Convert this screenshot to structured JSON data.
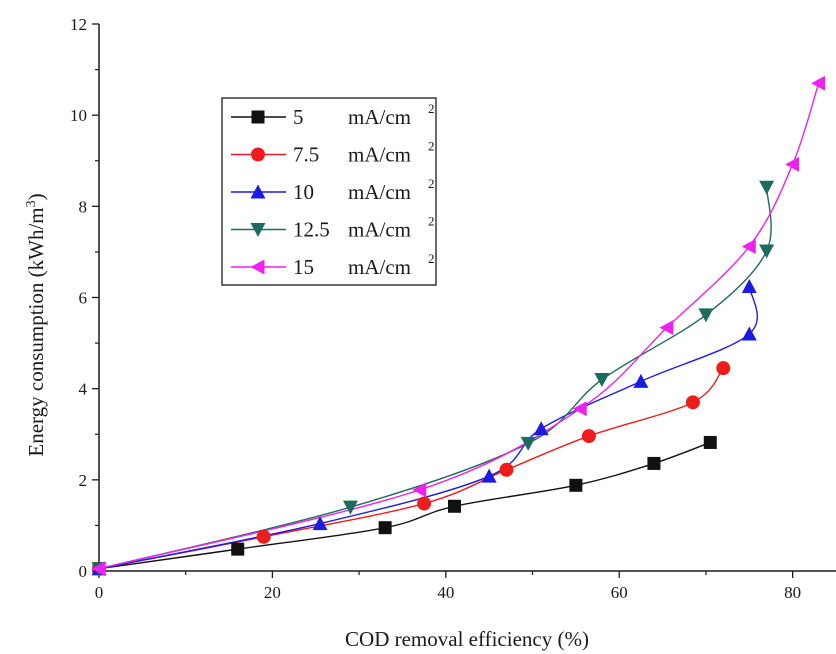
{
  "colors": {
    "axis": "#1a1a1a",
    "s5": "#111111",
    "s7_5": "#ee1c1c",
    "s10": "#1c1ce0",
    "s12_5": "#1d6b5e",
    "s15": "#ee22ee"
  },
  "chart_data": {
    "type": "line",
    "title": "",
    "xlabel": "COD removal efficiency (%)",
    "ylabel": "Energy consumption (kWh/m3)",
    "ylabel_parts": {
      "main": "Energy consumption (kWh/m",
      "sup": "3",
      "close": ")"
    },
    "xlim": [
      0,
      85
    ],
    "ylim": [
      0,
      12
    ],
    "x_ticks": [
      "0",
      "20",
      "40",
      "60",
      "80"
    ],
    "y_ticks": [
      "0",
      "2",
      "4",
      "6",
      "8",
      "10",
      "12"
    ],
    "x_tick_values": [
      0,
      20,
      40,
      60,
      80
    ],
    "y_tick_values": [
      0,
      2,
      4,
      6,
      8,
      10,
      12
    ],
    "legend_position": "upper-left",
    "series": [
      {
        "name": "5 mA/cm2",
        "legend_value": "5",
        "legend_unit": "mA/cm",
        "legend_sup": "2",
        "color_key": "s5",
        "marker": "square",
        "points": [
          [
            0,
            0.05
          ],
          [
            16,
            0.48
          ],
          [
            33,
            0.95
          ],
          [
            41,
            1.42
          ],
          [
            55,
            1.88
          ],
          [
            64,
            2.36
          ],
          [
            70.5,
            2.82
          ]
        ]
      },
      {
        "name": "7.5 mA/cm2",
        "legend_value": "7.5",
        "legend_unit": "mA/cm",
        "legend_sup": "2",
        "color_key": "s7_5",
        "marker": "circle",
        "points": [
          [
            0,
            0.05
          ],
          [
            19,
            0.75
          ],
          [
            37.5,
            1.48
          ],
          [
            47,
            2.22
          ],
          [
            56.5,
            2.96
          ],
          [
            68.5,
            3.7
          ],
          [
            72,
            4.45
          ]
        ]
      },
      {
        "name": "10 mA/cm2",
        "legend_value": "10",
        "legend_unit": "mA/cm",
        "legend_sup": "2",
        "color_key": "s10",
        "marker": "triangle-up",
        "points": [
          [
            0,
            0.05
          ],
          [
            25.5,
            1.04
          ],
          [
            45,
            2.08
          ],
          [
            51,
            3.12
          ],
          [
            62.5,
            4.16
          ],
          [
            75,
            5.2
          ],
          [
            75,
            6.24
          ]
        ]
      },
      {
        "name": "12.5 mA/cm2",
        "legend_value": "12.5",
        "legend_unit": "mA/cm",
        "legend_sup": "2",
        "color_key": "s12_5",
        "marker": "triangle-down",
        "points": [
          [
            0,
            0.05
          ],
          [
            29,
            1.4
          ],
          [
            49.5,
            2.8
          ],
          [
            58,
            4.2
          ],
          [
            70,
            5.62
          ],
          [
            77,
            7.02
          ],
          [
            77,
            8.42
          ]
        ]
      },
      {
        "name": "15 mA/cm2",
        "legend_value": "15",
        "legend_unit": "mA/cm",
        "legend_sup": "2",
        "color_key": "s15",
        "marker": "triangle-left",
        "points": [
          [
            0,
            0.05
          ],
          [
            37,
            1.78
          ],
          [
            55.5,
            3.56
          ],
          [
            65.5,
            5.34
          ],
          [
            75,
            7.12
          ],
          [
            80,
            8.92
          ],
          [
            83,
            10.7
          ]
        ]
      }
    ]
  }
}
